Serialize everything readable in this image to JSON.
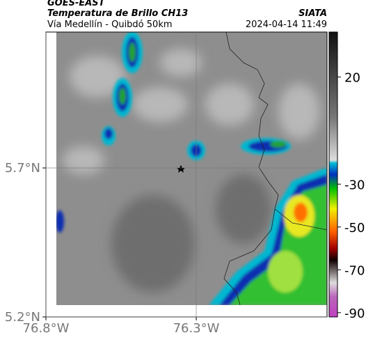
{
  "chart_data": {
    "type": "map",
    "title": "GOES-EAST",
    "subtitle": "Temperatura de Brillo CH13",
    "caption": "Vía Medellín - Quibdó 50km",
    "source": "SIATA",
    "timestamp": "2024-04-14 11:49",
    "xlim": [
      -76.8,
      -75.865
    ],
    "ylim": [
      5.2,
      6.156
    ],
    "xticks": [
      {
        "value": -76.8,
        "label": "76.8°W"
      },
      {
        "value": -76.3,
        "label": "76.3°W"
      }
    ],
    "yticks": [
      {
        "value": 5.2,
        "label": "5.2°N"
      },
      {
        "value": 5.7,
        "label": "5.7°N"
      }
    ],
    "grid": true,
    "colorbar": {
      "ylim": [
        -92,
        41
      ],
      "yticks": [
        20,
        -30,
        -50,
        -70,
        -90
      ]
    }
  }
}
